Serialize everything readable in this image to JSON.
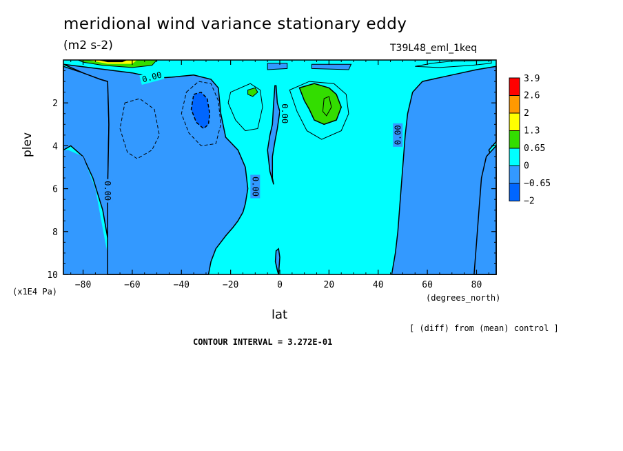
{
  "title": "meridional wind variance  stationary eddy",
  "units": "(m2 s-2)",
  "run_label": "T39L48_eml_1keq",
  "note": "[ (diff) from (mean) control ]",
  "contour_interval": "CONTOUR INTERVAL = 3.272E-01",
  "chart_data": {
    "type": "heatmap",
    "title": "meridional wind variance  stationary eddy",
    "subtitle": "(m2 s-2)",
    "xlabel": "lat",
    "xunits": "(degrees_north)",
    "ylabel": "plev",
    "yunits": "(x1E4 Pa)",
    "xlim": [
      -88,
      88
    ],
    "ylim": [
      0,
      10
    ],
    "y_inverted": true,
    "x_ticks": [
      -80,
      -60,
      -40,
      -20,
      0,
      20,
      40,
      60,
      80
    ],
    "y_ticks": [
      2,
      4,
      6,
      8,
      10
    ],
    "colorbar": {
      "levels": [
        "3.9",
        "2.6",
        "2",
        "1.3",
        "0.65",
        "0",
        "-0.65",
        "-2"
      ],
      "colors": [
        "#ff0000",
        "#ff9900",
        "#ffff00",
        "#33dd00",
        "#00ffff",
        "#3399ff",
        "#0066ff"
      ]
    },
    "contour_labels": [
      "0.00",
      "0.00",
      "0.00",
      "0.00",
      "0.00"
    ],
    "regions": [
      {
        "class": "-0.65 to 0",
        "lat": [
          -88,
          -70
        ],
        "plev": [
          1,
          10
        ]
      },
      {
        "class": "-0.65 to 0",
        "lat": [
          -66,
          -25
        ],
        "plev": [
          1,
          10
        ]
      },
      {
        "class": "-2 to -0.65",
        "lat": [
          -36,
          -28
        ],
        "plev": [
          1.5,
          3.2
        ]
      },
      {
        "class": "0.65 to 1.3",
        "lat": [
          10,
          25
        ],
        "plev": [
          1.4,
          2.9
        ]
      },
      {
        "class": "0.65 to 1.3",
        "lat": [
          -12,
          -9
        ],
        "plev": [
          1.4,
          1.7
        ]
      },
      {
        "class": "-0.65 to 0",
        "lat": [
          47,
          88
        ],
        "plev": [
          1,
          10
        ]
      },
      {
        "class": "1.3 to 3.9",
        "lat": [
          -82,
          -50
        ],
        "plev": [
          0,
          0.2
        ]
      }
    ]
  }
}
